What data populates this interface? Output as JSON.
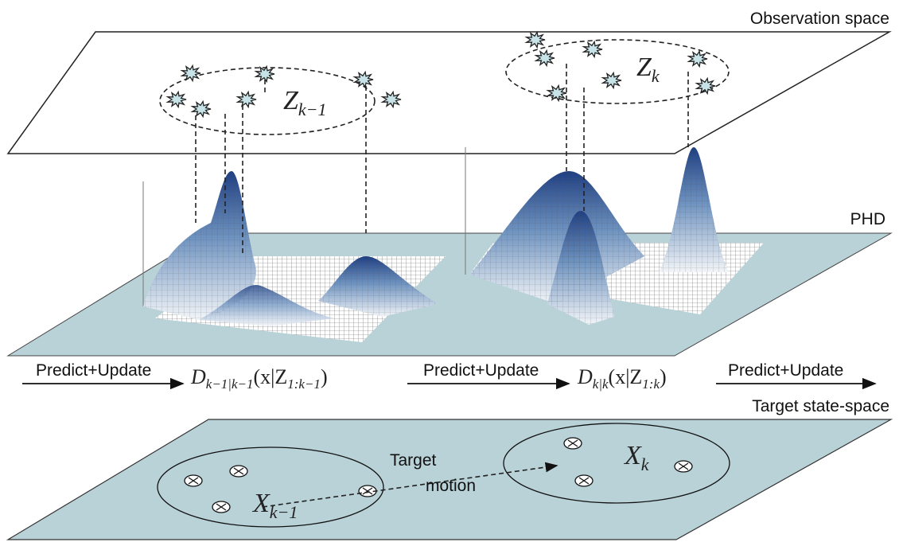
{
  "labels": {
    "observation_space": "Observation space",
    "phd": "PHD",
    "target_state_space": "Target state-space"
  },
  "observations": [
    {
      "symbol": "Z",
      "subscript": "k−1"
    },
    {
      "symbol": "Z",
      "subscript": "k"
    }
  ],
  "steps": [
    "Predict+Update",
    "Predict+Update",
    "Predict+Update"
  ],
  "densities": [
    {
      "symbol": "D",
      "subscript": "k−1|k−1",
      "argument": "(x|Z",
      "argument_subscript": "1:k−1",
      "close": ")"
    },
    {
      "symbol": "D",
      "subscript": "k|k",
      "argument": "(x|Z",
      "argument_subscript": "1:k",
      "close": ")"
    }
  ],
  "states": [
    {
      "symbol": "X",
      "subscript": "k−1"
    },
    {
      "symbol": "X",
      "subscript": "k"
    }
  ],
  "motion": {
    "line1": "Target",
    "line2": "motion"
  }
}
